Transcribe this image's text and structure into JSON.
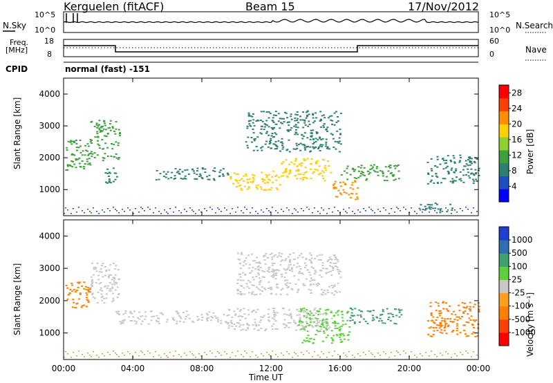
{
  "header": {
    "station": "Kerguelen (fitACF)",
    "beam": "Beam 15",
    "date": "17/Nov/2012"
  },
  "panels": {
    "nsky_label": "N.Sky",
    "nsearch_label": "N.Search",
    "freq_label_line1": "Freq.",
    "freq_label_line2": "[MHz]",
    "nave_label": "Nave",
    "cpid_label": "CPID",
    "cpid_value": "normal (fast) -151",
    "noise_ticks_left": [
      "10^5",
      "10^0"
    ],
    "noise_ticks_right": [
      "10^5",
      "10^0"
    ],
    "freq_ticks_left": [
      "18",
      "8"
    ],
    "nave_ticks_right": [
      "60",
      "0"
    ]
  },
  "chart_data": [
    {
      "type": "heatmap",
      "name": "power",
      "xlabel": "",
      "ylabel": "Slant Range [km]",
      "x_ticks": [
        "00:00",
        "04:00",
        "08:00",
        "12:00",
        "16:00",
        "20:00",
        "00:00"
      ],
      "y_ticks": [
        1000,
        2000,
        3000,
        4000
      ],
      "ylim": [
        180,
        4500
      ],
      "xlim_hours": [
        0,
        24
      ],
      "colorbar": {
        "label": "Power [dB]",
        "ticks": [
          4,
          8,
          12,
          16,
          20,
          24,
          28
        ],
        "range": [
          0,
          30
        ],
        "colors": [
          "#0000ff",
          "#1f4fc0",
          "#2f7f6f",
          "#3f9f3f",
          "#8fcf2f",
          "#ffcf00",
          "#ff8f00",
          "#ff3f00",
          "#ff0000"
        ]
      },
      "regions": [
        {
          "t0": 0.0,
          "t1": 1.5,
          "r0": 1600,
          "r1": 2600,
          "level": 12
        },
        {
          "t0": 1.5,
          "t1": 3.2,
          "r0": 1900,
          "r1": 3200,
          "level": 10
        },
        {
          "t0": 2.3,
          "t1": 3.2,
          "r0": 1200,
          "r1": 1700,
          "level": 6
        },
        {
          "t0": 5.3,
          "t1": 9.5,
          "r0": 1300,
          "r1": 1700,
          "level": 9
        },
        {
          "t0": 9.5,
          "t1": 12.5,
          "r0": 1000,
          "r1": 1600,
          "level": 18
        },
        {
          "t0": 12.5,
          "t1": 15.5,
          "r0": 1300,
          "r1": 2000,
          "level": 20
        },
        {
          "t0": 15.5,
          "t1": 17.0,
          "r0": 700,
          "r1": 1300,
          "level": 22
        },
        {
          "t0": 16.0,
          "t1": 19.5,
          "r0": 1300,
          "r1": 1800,
          "level": 10
        },
        {
          "t0": 10.5,
          "t1": 16.0,
          "r0": 2200,
          "r1": 3500,
          "level": 6
        },
        {
          "t0": 21.0,
          "t1": 24.0,
          "r0": 1200,
          "r1": 2100,
          "level": 8
        },
        {
          "t0": 20.5,
          "t1": 22.5,
          "r0": 300,
          "r1": 600,
          "level": 6
        }
      ]
    },
    {
      "type": "heatmap",
      "name": "velocity",
      "xlabel": "Time UT",
      "ylabel": "Slant Range [km]",
      "x_ticks": [
        "00:00",
        "04:00",
        "08:00",
        "12:00",
        "16:00",
        "20:00",
        "00:00"
      ],
      "y_ticks": [
        1000,
        2000,
        3000,
        4000
      ],
      "ylim": [
        180,
        4500
      ],
      "xlim_hours": [
        0,
        24
      ],
      "colorbar": {
        "label": "Velocity [m s⁻¹]",
        "ticks": [
          "1000",
          "500",
          "100",
          "25",
          "-25",
          "-100",
          "-500",
          "-1000"
        ],
        "colors": [
          "#1f3fcf",
          "#2f6faf",
          "#3f9f6f",
          "#5fcf3f",
          "#c8c8c8",
          "#ff9f1f",
          "#ff7f00",
          "#ff3f00",
          "#ff0000"
        ]
      },
      "regions": [
        {
          "t0": 0.0,
          "t1": 1.5,
          "r0": 1800,
          "r1": 2600,
          "level": "-100"
        },
        {
          "t0": 1.5,
          "t1": 3.2,
          "r0": 1900,
          "r1": 3200,
          "level": "25"
        },
        {
          "t0": 3.0,
          "t1": 9.5,
          "r0": 1300,
          "r1": 1700,
          "level": "25"
        },
        {
          "t0": 9.5,
          "t1": 15.5,
          "r0": 1100,
          "r1": 1800,
          "level": "25"
        },
        {
          "t0": 13.5,
          "t1": 16.5,
          "r0": 700,
          "r1": 1800,
          "level": "100"
        },
        {
          "t0": 16.5,
          "t1": 19.5,
          "r0": 1300,
          "r1": 1800,
          "level": "500"
        },
        {
          "t0": 21.0,
          "t1": 24.0,
          "r0": 900,
          "r1": 2000,
          "level": "-100"
        },
        {
          "t0": 10.0,
          "t1": 16.0,
          "r0": 2200,
          "r1": 3500,
          "level": "25"
        }
      ]
    }
  ]
}
